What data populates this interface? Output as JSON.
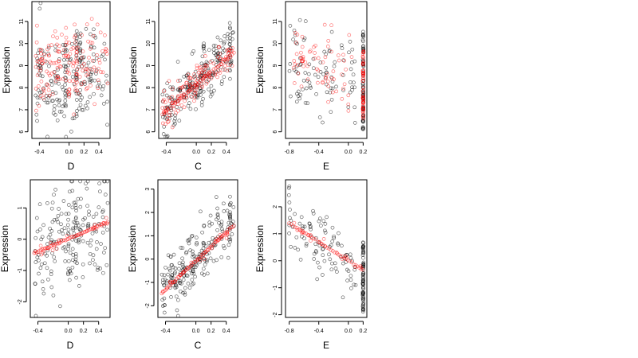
{
  "colors": {
    "black_points": "#000000",
    "red_points": "#ff0000",
    "axis": "#000000"
  },
  "chart_data": [
    {
      "type": "scatter",
      "xlabel": "D",
      "ylabel": "Expression",
      "xlim": [
        -0.5,
        0.55
      ],
      "ylim": [
        5.7,
        11.9
      ],
      "xticks": [
        -0.4,
        0.0,
        0.2,
        0.4
      ],
      "xticklabels": [
        "-0.4",
        "0.0",
        "0.2",
        "0.4"
      ],
      "yticks": [
        6,
        7,
        8,
        9,
        10,
        11
      ],
      "yticklabels": [
        "6",
        "7",
        "8",
        "9",
        "10",
        "11"
      ],
      "series": [
        {
          "color": "black",
          "cloud": {
            "xmin": -0.45,
            "xmax": 0.52,
            "ymid": [
              8.4,
              8.4
            ],
            "spread": 2.6,
            "n": 170,
            "seed": 11
          },
          "columns": [
            {
              "x": -0.05,
              "ymin": 6.9,
              "ymax": 10.0,
              "n": 14
            },
            {
              "x": 0.1,
              "ymin": 6.5,
              "ymax": 10.6,
              "n": 16
            },
            {
              "x": 0.15,
              "ymin": 6.2,
              "ymax": 10.5,
              "n": 12
            }
          ]
        },
        {
          "color": "red",
          "cloud": {
            "xmin": -0.45,
            "xmax": 0.52,
            "ymid": [
              9.0,
              9.0
            ],
            "spread": 2.4,
            "n": 150,
            "seed": 12
          },
          "columns": [
            {
              "x": 0.1,
              "ymin": 6.8,
              "ymax": 9.8,
              "n": 10
            },
            {
              "x": 0.0,
              "ymin": 7.5,
              "ymax": 9.2,
              "n": 8
            }
          ]
        }
      ]
    },
    {
      "type": "scatter",
      "xlabel": "C",
      "ylabel": "Expression",
      "xlim": [
        -0.5,
        0.55
      ],
      "ylim": [
        5.7,
        11.9
      ],
      "xticks": [
        -0.4,
        0.0,
        0.2,
        0.4
      ],
      "xticklabels": [
        "-0.4",
        "0.0",
        "0.2",
        "0.4"
      ],
      "yticks": [
        6,
        7,
        8,
        9,
        10,
        11
      ],
      "yticklabels": [
        "6",
        "7",
        "8",
        "9",
        "10",
        "11"
      ],
      "series": [
        {
          "color": "black",
          "cloud": {
            "xmin": -0.45,
            "xmax": 0.5,
            "ymid": [
              6.8,
              9.8
            ],
            "spread": 1.5,
            "n": 200,
            "seed": 21
          },
          "columns": [
            {
              "x": 0.45,
              "ymin": 8.2,
              "ymax": 11.3,
              "n": 12
            },
            {
              "x": 0.1,
              "ymin": 7.8,
              "ymax": 10.0,
              "n": 8
            }
          ]
        },
        {
          "color": "red",
          "cloud": {
            "xmin": -0.45,
            "xmax": 0.5,
            "ymid": [
              6.9,
              9.6
            ],
            "spread": 0.9,
            "n": 140,
            "seed": 22
          },
          "line": {
            "x0": -0.45,
            "x1": 0.5,
            "y0": 6.8,
            "y1": 9.6,
            "n": 40
          }
        }
      ]
    },
    {
      "type": "scatter",
      "xlabel": "E",
      "ylabel": "Expression",
      "xlim": [
        -0.85,
        0.25
      ],
      "ylim": [
        5.7,
        11.9
      ],
      "xticks": [
        -0.8,
        -0.4,
        0.0,
        0.2
      ],
      "xticklabels": [
        "-0.8",
        "-0.4",
        "0.0",
        "0.2"
      ],
      "yticks": [
        6,
        7,
        8,
        9,
        10,
        11
      ],
      "yticklabels": [
        "6",
        "7",
        "8",
        "9",
        "10",
        "11"
      ],
      "series": [
        {
          "color": "black",
          "cloud": {
            "xmin": -0.8,
            "xmax": 0.1,
            "ymid": [
              9.0,
              8.3
            ],
            "spread": 2.6,
            "n": 90,
            "seed": 31
          },
          "columns": [
            {
              "x": 0.2,
              "ymin": 6.1,
              "ymax": 10.7,
              "n": 70
            }
          ]
        },
        {
          "color": "red",
          "cloud": {
            "xmin": -0.75,
            "xmax": 0.05,
            "ymid": [
              9.4,
              8.6
            ],
            "spread": 2.4,
            "n": 70,
            "seed": 32
          },
          "columns": [
            {
              "x": 0.2,
              "ymin": 6.5,
              "ymax": 9.7,
              "n": 60
            }
          ]
        }
      ]
    },
    {
      "type": "scatter",
      "xlabel": "D",
      "ylabel": "Expression",
      "xlim": [
        -0.5,
        0.55
      ],
      "ylim": [
        -2.5,
        1.9
      ],
      "xticks": [
        -0.4,
        0.0,
        0.2,
        0.4
      ],
      "xticklabels": [
        "-0.4",
        "0.0",
        "0.2",
        "0.4"
      ],
      "yticks": [
        -2,
        -1,
        0,
        1
      ],
      "yticklabels": [
        "-2",
        "-1",
        "0",
        "1"
      ],
      "series": [
        {
          "color": "black",
          "cloud": {
            "xmin": -0.45,
            "xmax": 0.52,
            "ymid": [
              -0.4,
              0.5
            ],
            "spread": 2.2,
            "n": 170,
            "seed": 41
          },
          "columns": [
            {
              "x": 0.1,
              "ymin": -0.8,
              "ymax": 1.4,
              "n": 12
            },
            {
              "x": 0.0,
              "ymin": -1.2,
              "ymax": 0.9,
              "n": 10
            }
          ]
        },
        {
          "color": "red",
          "cloud": {
            "xmin": -0.45,
            "xmax": 0.52,
            "ymid": [
              -0.45,
              0.55
            ],
            "spread": 0.2,
            "n": 25,
            "seed": 42
          },
          "line": {
            "x0": -0.45,
            "x1": 0.52,
            "y0": -0.45,
            "y1": 0.55,
            "n": 55
          }
        }
      ]
    },
    {
      "type": "scatter",
      "xlabel": "C",
      "ylabel": "Expression",
      "xlim": [
        -0.5,
        0.55
      ],
      "ylim": [
        -2.5,
        3.4
      ],
      "xticks": [
        -0.4,
        0.0,
        0.2,
        0.4
      ],
      "xticklabels": [
        "-0.4",
        "0.0",
        "0.2",
        "0.4"
      ],
      "yticks": [
        -2,
        -1,
        0,
        1,
        2,
        3
      ],
      "yticklabels": [
        "-2",
        "-1",
        "0",
        "1",
        "2",
        "3"
      ],
      "series": [
        {
          "color": "black",
          "cloud": {
            "xmin": -0.45,
            "xmax": 0.5,
            "ymid": [
              -1.5,
              1.8
            ],
            "spread": 1.5,
            "n": 200,
            "seed": 51
          },
          "columns": [
            {
              "x": 0.45,
              "ymin": 0.5,
              "ymax": 3.0,
              "n": 12
            },
            {
              "x": 0.1,
              "ymin": -0.5,
              "ymax": 1.0,
              "n": 8
            }
          ]
        },
        {
          "color": "red",
          "cloud": {
            "xmin": -0.45,
            "xmax": 0.5,
            "ymid": [
              -1.4,
              1.4
            ],
            "spread": 0.25,
            "n": 30,
            "seed": 52
          },
          "line": {
            "x0": -0.45,
            "x1": 0.5,
            "y0": -1.45,
            "y1": 1.45,
            "n": 55
          }
        }
      ]
    },
    {
      "type": "scatter",
      "xlabel": "E",
      "ylabel": "Expression",
      "xlim": [
        -0.85,
        0.25
      ],
      "ylim": [
        -2.1,
        3.0
      ],
      "xticks": [
        -0.8,
        -0.4,
        0.0,
        0.2
      ],
      "xticklabels": [
        "-0.8",
        "-0.4",
        "0.0",
        "0.2"
      ],
      "yticks": [
        -2,
        -1,
        0,
        1,
        2
      ],
      "yticklabels": [
        "-2",
        "-1",
        "0",
        "1",
        "2"
      ],
      "series": [
        {
          "color": "black",
          "cloud": {
            "xmin": -0.8,
            "xmax": 0.1,
            "ymid": [
              1.4,
              -0.2
            ],
            "spread": 1.6,
            "n": 90,
            "seed": 61
          },
          "columns": [
            {
              "x": 0.2,
              "ymin": -1.9,
              "ymax": 0.9,
              "n": 70
            },
            {
              "x": -0.8,
              "ymin": 0.9,
              "ymax": 2.8,
              "n": 6
            }
          ]
        },
        {
          "color": "red",
          "cloud": {
            "xmin": -0.8,
            "xmax": 0.2,
            "ymid": [
              1.4,
              -0.35
            ],
            "spread": 0.25,
            "n": 20,
            "seed": 62
          },
          "line": {
            "x0": -0.8,
            "x1": 0.2,
            "y0": 1.4,
            "y1": -0.35,
            "n": 40
          }
        }
      ]
    }
  ]
}
